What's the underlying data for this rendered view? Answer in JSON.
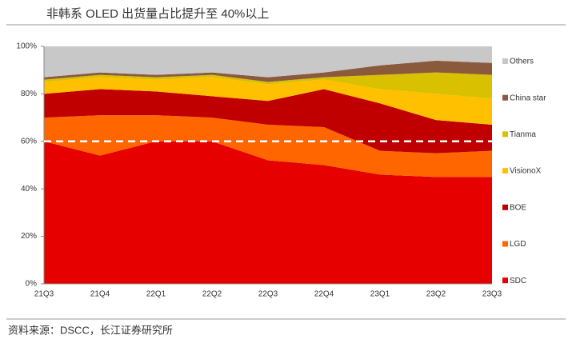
{
  "title": "非韩系 OLED 出货量占比提升至 40%以上",
  "source": "资料来源：DSCC，长江证券研究所",
  "chart_data": {
    "type": "stacked_area",
    "categories": [
      "21Q3",
      "21Q4",
      "22Q1",
      "22Q2",
      "22Q3",
      "22Q4",
      "23Q1",
      "23Q2",
      "23Q3"
    ],
    "series": [
      {
        "name": "SDC",
        "color": "#E60000",
        "values": [
          60,
          54,
          60,
          60,
          52,
          50,
          46,
          45,
          45
        ]
      },
      {
        "name": "LGD",
        "color": "#FF6600",
        "values": [
          10,
          17,
          11,
          10,
          15,
          16,
          10,
          10,
          11
        ]
      },
      {
        "name": "BOE",
        "color": "#C00000",
        "values": [
          10,
          11,
          10,
          9,
          10,
          16,
          20,
          14,
          11
        ]
      },
      {
        "name": "VisionoX",
        "color": "#FFC000",
        "values": [
          5,
          5,
          5,
          8,
          7,
          4,
          6,
          11,
          11
        ]
      },
      {
        "name": "Tianma",
        "color": "#D9C000",
        "values": [
          1,
          1,
          1,
          1,
          1,
          1,
          6,
          9,
          10
        ]
      },
      {
        "name": "China star",
        "color": "#8B5A3C",
        "values": [
          1,
          1,
          1,
          1,
          2,
          2,
          4,
          5,
          5
        ]
      },
      {
        "name": "Others",
        "color": "#C8C8C8",
        "values": [
          13,
          11,
          12,
          11,
          13,
          11,
          8,
          6,
          7
        ]
      }
    ],
    "ylim": [
      0,
      100
    ],
    "yticks": [
      {
        "value": 0,
        "label": "0%"
      },
      {
        "value": 20,
        "label": "20%"
      },
      {
        "value": 40,
        "label": "40%"
      },
      {
        "value": 60,
        "label": "60%"
      },
      {
        "value": 80,
        "label": "80%"
      },
      {
        "value": 100,
        "label": "100%"
      }
    ],
    "reference_line": 60,
    "legend": "right"
  }
}
